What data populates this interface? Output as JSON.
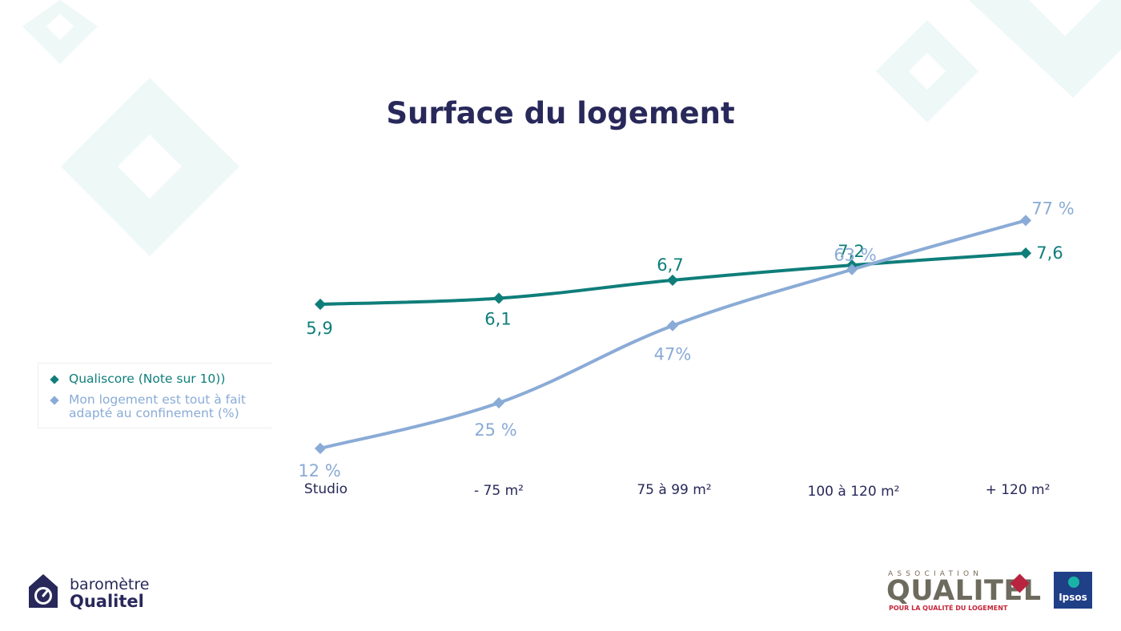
{
  "chart_data": {
    "type": "line",
    "title": "Surface du logement",
    "categories": [
      "Studio",
      "- 75 m²",
      "75 à 99 m²",
      "100 à 120 m²",
      "+ 120 m²"
    ],
    "series": [
      {
        "name": "Qualiscore (Note sur 10))",
        "values": [
          5.9,
          6.1,
          6.7,
          7.2,
          7.6
        ],
        "labels": [
          "5,9",
          "6,1",
          "6,7",
          "7,2",
          "7,6"
        ],
        "color": "#0f7e7a"
      },
      {
        "name": "Mon logement est tout à fait adapté au confinement (%)",
        "values": [
          12,
          25,
          47,
          63,
          77
        ],
        "labels": [
          "12 %",
          "25 %",
          "47%",
          "63 %",
          "77 %"
        ],
        "color": "#8aabd6"
      }
    ],
    "grid": false,
    "legend_position": "left"
  },
  "branding": {
    "left_small": "baromètre",
    "left_big": "Qualitel",
    "assoc_label": "ASSOCIATION",
    "assoc_name": "QUALITEL",
    "assoc_tagline": "POUR LA QUALITÉ DU LOGEMENT",
    "ipsos": "Ipsos"
  },
  "colors": {
    "title": "#28285a",
    "decor": "#eef8f7"
  }
}
